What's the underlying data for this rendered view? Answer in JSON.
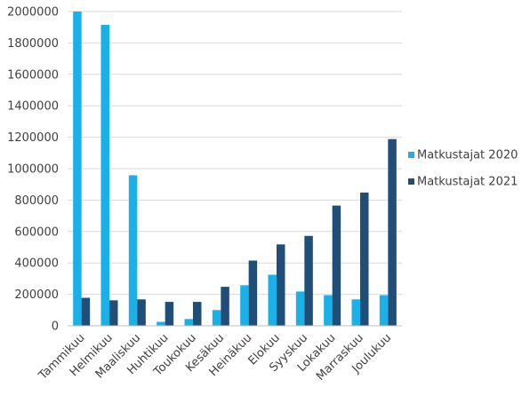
{
  "chart_data": {
    "type": "bar",
    "categories": [
      "Tammikuu",
      "Helmikuu",
      "Maaliskuu",
      "Huhtikuu",
      "Toukokuu",
      "Kesäkuu",
      "Heinäkuu",
      "Elokuu",
      "Syyskuu",
      "Lokakuu",
      "Marraskuu",
      "Joulukuu"
    ],
    "series": [
      {
        "name": "Matkustajat 2020",
        "color": "#1ab0e8",
        "values": [
          2000000,
          1915000,
          958000,
          25000,
          43000,
          100000,
          258000,
          325000,
          218000,
          195000,
          168000,
          195000
        ]
      },
      {
        "name": "Matkustajat 2021",
        "color": "#1f4e79",
        "values": [
          178000,
          162000,
          168000,
          152000,
          152000,
          248000,
          415000,
          518000,
          572000,
          765000,
          848000,
          1188000
        ]
      }
    ],
    "ylim": [
      0,
      2000000
    ],
    "yticks": [
      "0",
      "200000",
      "400000",
      "600000",
      "800000",
      "1000000",
      "1200000",
      "1400000",
      "1600000",
      "1800000",
      "2000000"
    ],
    "grid": true,
    "legend_position": "right"
  }
}
